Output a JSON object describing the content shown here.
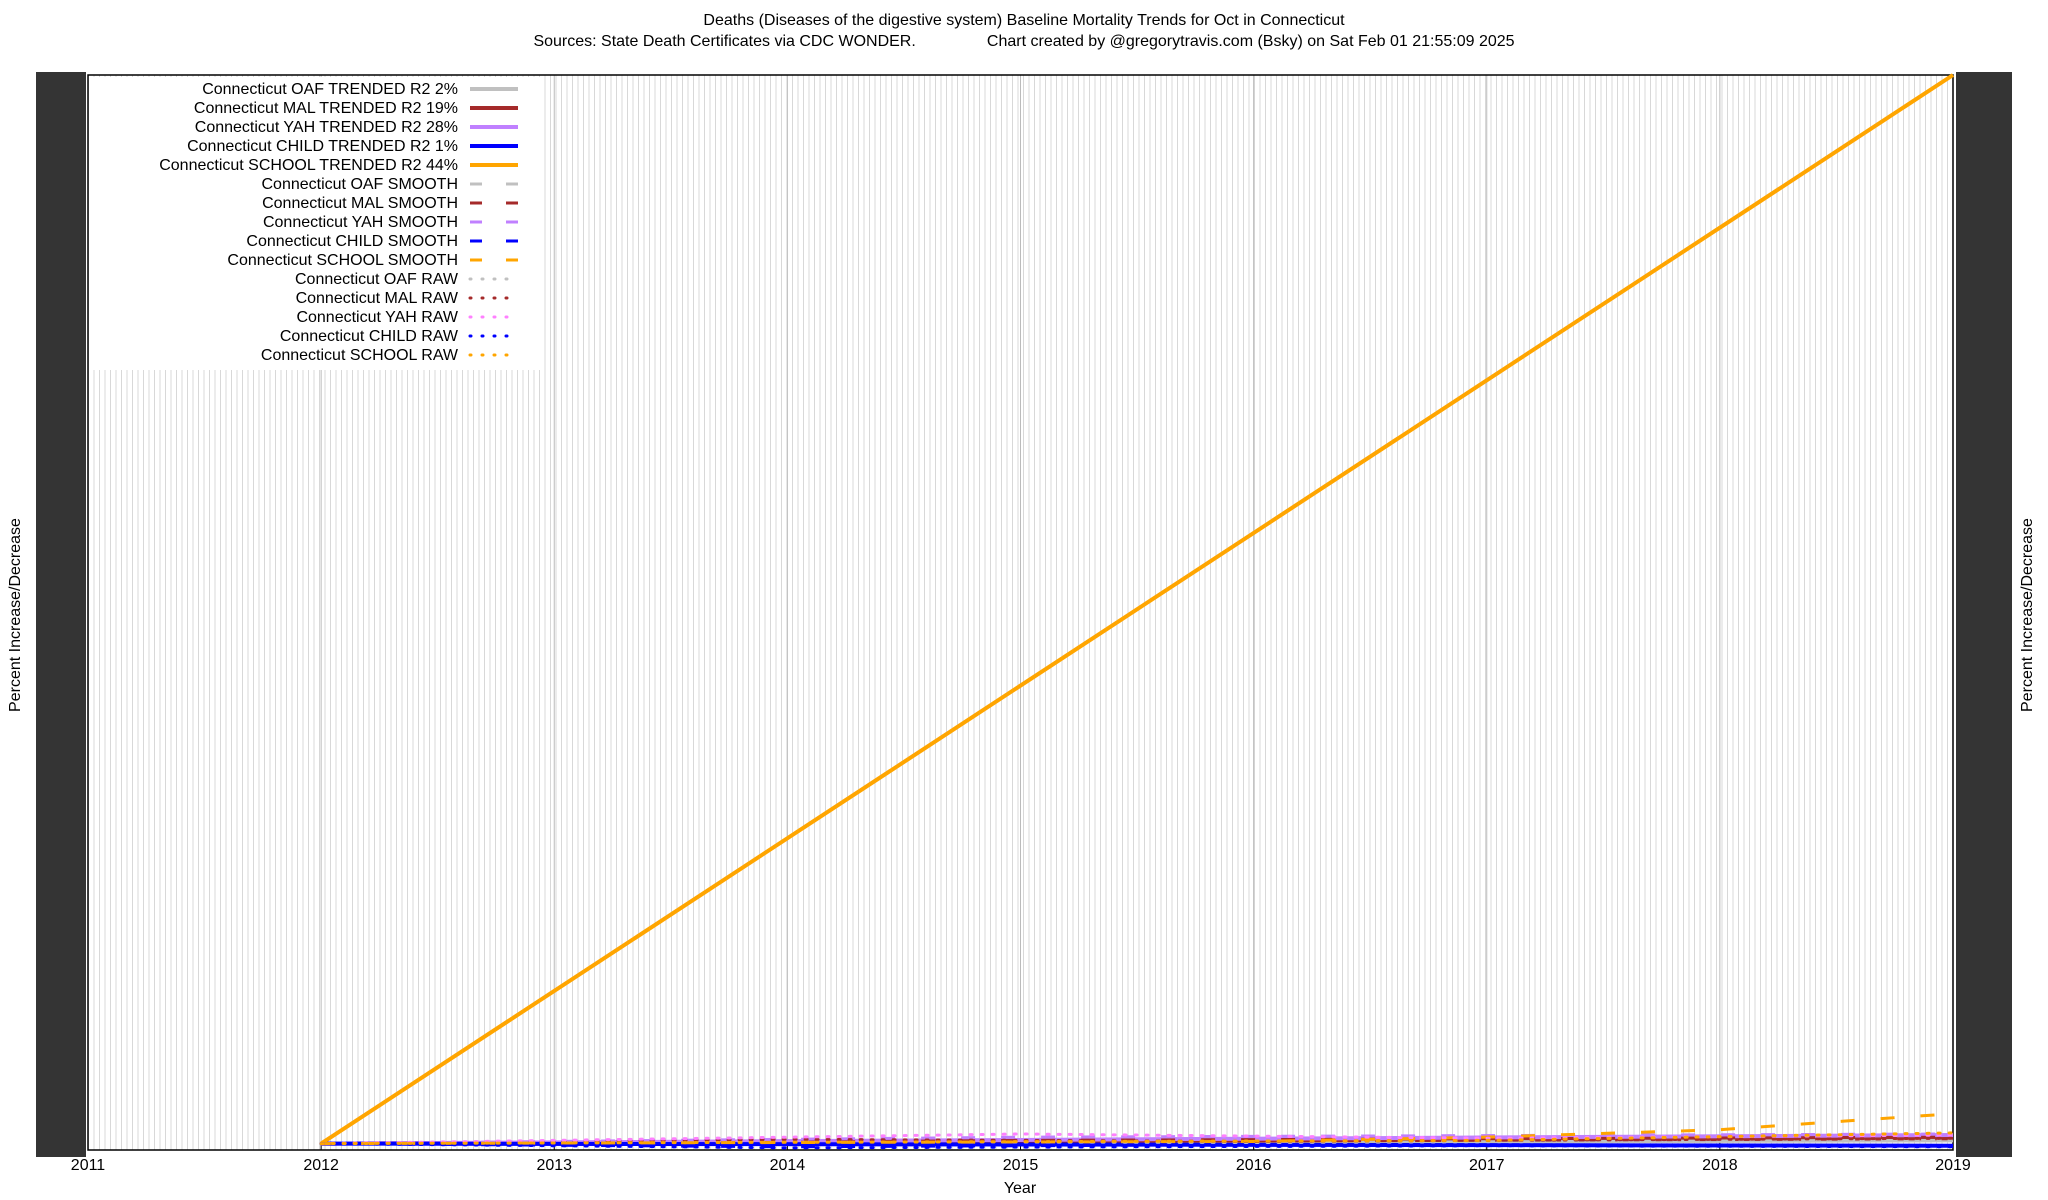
{
  "chart_data": {
    "type": "line",
    "title": "Deaths (Diseases of the digestive system)  Baseline Mortality Trends for Oct in Connecticut",
    "subtitle": "Sources: State Death Certificates via CDC WONDER.                Chart created by @gregorytravis.com (Bsky) on Sat Feb 01 21:55:09 2025",
    "xlabel": "Year",
    "ylabel": "Percent Increase/Decrease",
    "y2label": "Percent Increase/Decrease",
    "xlim": [
      2011,
      2019
    ],
    "xticks": [
      2011,
      2012,
      2013,
      2014,
      2015,
      2016,
      2017,
      2018,
      2019
    ],
    "ylim": [
      -6,
      1000
    ],
    "grid": true,
    "legend": "top-left",
    "series": [
      {
        "name": "Connecticut OAF TRENDED R2  2%",
        "color": "#c0c0c0",
        "style": "solid",
        "x": [
          2012,
          2019
        ],
        "values": [
          0,
          3
        ]
      },
      {
        "name": "Connecticut MAL TRENDED R2  19%",
        "color": "#a52a2a",
        "style": "solid",
        "x": [
          2012,
          2019
        ],
        "values": [
          0,
          5
        ]
      },
      {
        "name": "Connecticut YAH TRENDED R2  28%",
        "color": "#c080ff",
        "style": "solid",
        "x": [
          2012,
          2019
        ],
        "values": [
          0,
          8
        ]
      },
      {
        "name": "Connecticut CHILD TRENDED R2  1%",
        "color": "#0000ff",
        "style": "solid",
        "x": [
          2012,
          2019
        ],
        "values": [
          0,
          -2
        ]
      },
      {
        "name": "Connecticut SCHOOL TRENDED R2  44%",
        "color": "#ffa500",
        "style": "solid",
        "x": [
          2012,
          2019
        ],
        "values": [
          0,
          1000
        ]
      },
      {
        "name": "Connecticut OAF SMOOTH",
        "color": "#c0c0c0",
        "style": "dashed",
        "x": [
          2012,
          2015,
          2019
        ],
        "values": [
          0,
          2,
          3
        ]
      },
      {
        "name": "Connecticut MAL SMOOTH",
        "color": "#a52a2a",
        "style": "dashed",
        "x": [
          2012,
          2015,
          2019
        ],
        "values": [
          0,
          3,
          6
        ]
      },
      {
        "name": "Connecticut YAH SMOOTH",
        "color": "#c080ff",
        "style": "dashed",
        "x": [
          2012,
          2015,
          2019
        ],
        "values": [
          0,
          6,
          9
        ]
      },
      {
        "name": "Connecticut CHILD SMOOTH",
        "color": "#0000ff",
        "style": "dashed",
        "x": [
          2012,
          2014,
          2016,
          2019
        ],
        "values": [
          0,
          -3,
          -1,
          -2
        ]
      },
      {
        "name": "Connecticut SCHOOL SMOOTH",
        "color": "#ffa500",
        "style": "dashed",
        "x": [
          2012,
          2016,
          2017,
          2018,
          2019
        ],
        "values": [
          0,
          2,
          6,
          13,
          28
        ]
      },
      {
        "name": "Connecticut OAF RAW",
        "color": "#c0c0c0",
        "style": "dotted",
        "x": [
          2012,
          2014,
          2016,
          2019
        ],
        "values": [
          0,
          2,
          1,
          3
        ]
      },
      {
        "name": "Connecticut MAL RAW",
        "color": "#a52a2a",
        "style": "dotted",
        "x": [
          2012,
          2014,
          2016,
          2019
        ],
        "values": [
          0,
          4,
          2,
          5
        ]
      },
      {
        "name": "Connecticut YAH RAW",
        "color": "#ff80ff",
        "style": "dotted",
        "x": [
          2012,
          2015,
          2017,
          2019
        ],
        "values": [
          0,
          9,
          5,
          8
        ]
      },
      {
        "name": "Connecticut CHILD RAW",
        "color": "#0000ff",
        "style": "dotted",
        "x": [
          2012,
          2014,
          2017,
          2019
        ],
        "values": [
          0,
          -4,
          -2,
          -3
        ]
      },
      {
        "name": "Connecticut SCHOOL RAW",
        "color": "#ffa500",
        "style": "dotted",
        "x": [
          2012,
          2017,
          2019
        ],
        "values": [
          0,
          3,
          10
        ]
      }
    ]
  }
}
